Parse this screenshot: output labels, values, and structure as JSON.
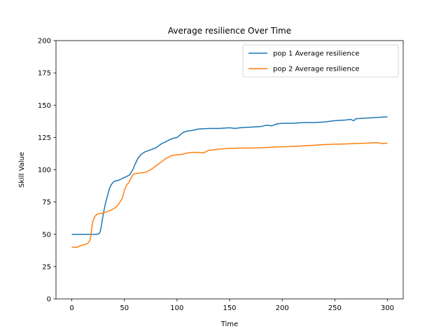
{
  "chart_data": {
    "type": "line",
    "title": "Average resilience Over Time",
    "xlabel": "Time",
    "ylabel": "Skill Value",
    "xlim": [
      -15,
      315
    ],
    "ylim": [
      0,
      200
    ],
    "xticks": [
      0,
      50,
      100,
      150,
      200,
      250,
      300
    ],
    "yticks": [
      0,
      25,
      50,
      75,
      100,
      125,
      150,
      175,
      200
    ],
    "grid": false,
    "legend_position": "top-right",
    "series": [
      {
        "name": "pop 1 Average resilience",
        "color": "#1f77b4",
        "points": [
          [
            0,
            50
          ],
          [
            10,
            50
          ],
          [
            20,
            50
          ],
          [
            24,
            50
          ],
          [
            26,
            50.5
          ],
          [
            27,
            52
          ],
          [
            28,
            56
          ],
          [
            30,
            66
          ],
          [
            32,
            74
          ],
          [
            34,
            80
          ],
          [
            36,
            86
          ],
          [
            38,
            89
          ],
          [
            40,
            91
          ],
          [
            45,
            92
          ],
          [
            50,
            94
          ],
          [
            55,
            96
          ],
          [
            58,
            100
          ],
          [
            60,
            104
          ],
          [
            63,
            109
          ],
          [
            66,
            112
          ],
          [
            70,
            114
          ],
          [
            75,
            115.5
          ],
          [
            80,
            117
          ],
          [
            85,
            120
          ],
          [
            90,
            122
          ],
          [
            95,
            124
          ],
          [
            100,
            125
          ],
          [
            103,
            127
          ],
          [
            106,
            129
          ],
          [
            110,
            130
          ],
          [
            115,
            130.5
          ],
          [
            120,
            131.5
          ],
          [
            130,
            132
          ],
          [
            140,
            132
          ],
          [
            150,
            132.5
          ],
          [
            155,
            132
          ],
          [
            160,
            132.5
          ],
          [
            170,
            133
          ],
          [
            180,
            133.5
          ],
          [
            185,
            134.5
          ],
          [
            190,
            134
          ],
          [
            195,
            135.5
          ],
          [
            200,
            136
          ],
          [
            210,
            136
          ],
          [
            220,
            136.5
          ],
          [
            230,
            136.5
          ],
          [
            240,
            137
          ],
          [
            250,
            138
          ],
          [
            260,
            138.5
          ],
          [
            265,
            139
          ],
          [
            268,
            138
          ],
          [
            270,
            139.5
          ],
          [
            280,
            140
          ],
          [
            290,
            140.5
          ],
          [
            300,
            141
          ]
        ]
      },
      {
        "name": "pop 2 Average resilience",
        "color": "#ff7f0e",
        "points": [
          [
            0,
            40
          ],
          [
            5,
            40
          ],
          [
            8,
            41
          ],
          [
            12,
            42
          ],
          [
            15,
            43
          ],
          [
            17,
            45
          ],
          [
            18,
            48
          ],
          [
            19,
            55
          ],
          [
            20,
            60
          ],
          [
            22,
            64
          ],
          [
            24,
            65.5
          ],
          [
            26,
            66
          ],
          [
            30,
            66.5
          ],
          [
            35,
            68
          ],
          [
            38,
            69
          ],
          [
            40,
            70
          ],
          [
            42,
            71
          ],
          [
            45,
            74
          ],
          [
            48,
            78
          ],
          [
            50,
            84
          ],
          [
            52,
            88
          ],
          [
            54,
            90
          ],
          [
            56,
            93
          ],
          [
            58,
            96
          ],
          [
            60,
            97
          ],
          [
            65,
            97.5
          ],
          [
            70,
            98
          ],
          [
            75,
            100
          ],
          [
            80,
            103
          ],
          [
            85,
            106
          ],
          [
            90,
            109
          ],
          [
            95,
            111
          ],
          [
            100,
            111.5
          ],
          [
            105,
            112
          ],
          [
            110,
            113
          ],
          [
            115,
            113.5
          ],
          [
            120,
            113.5
          ],
          [
            125,
            113
          ],
          [
            130,
            115
          ],
          [
            135,
            115.5
          ],
          [
            140,
            116
          ],
          [
            150,
            116.5
          ],
          [
            160,
            116.8
          ],
          [
            170,
            116.8
          ],
          [
            180,
            117
          ],
          [
            190,
            117.5
          ],
          [
            200,
            117.8
          ],
          [
            210,
            118
          ],
          [
            220,
            118.5
          ],
          [
            230,
            119
          ],
          [
            240,
            119.5
          ],
          [
            250,
            119.8
          ],
          [
            260,
            120
          ],
          [
            270,
            120.3
          ],
          [
            280,
            120.6
          ],
          [
            290,
            121
          ],
          [
            295,
            120.3
          ],
          [
            300,
            120.5
          ]
        ]
      }
    ]
  }
}
